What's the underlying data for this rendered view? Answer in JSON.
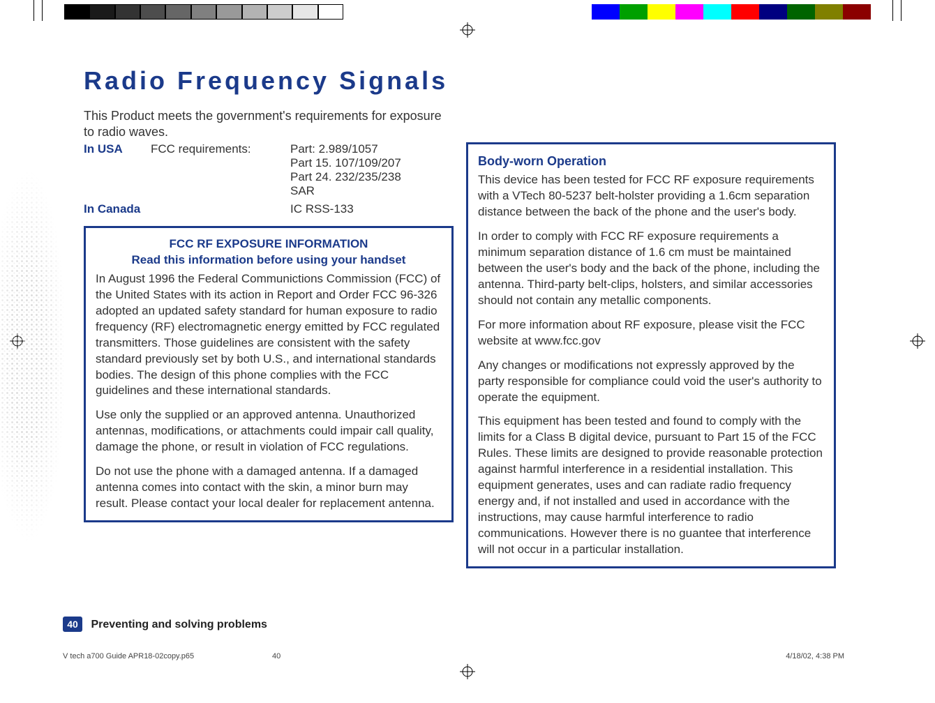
{
  "grayscale_bar": [
    "#000000",
    "#1a1a1a",
    "#333333",
    "#4d4d4d",
    "#666666",
    "#808080",
    "#999999",
    "#b3b3b3",
    "#cccccc",
    "#e6e6e6",
    "#ffffff"
  ],
  "color_bar": [
    "#0000ff",
    "#00a000",
    "#ffff00",
    "#ff00ff",
    "#00ffff",
    "#ff0000",
    "#000080",
    "#006400",
    "#808000",
    "#8b0000"
  ],
  "title": "Radio Frequency Signals",
  "intro": "This Product meets the government's requirements for exposure to radio waves.",
  "requirements": {
    "usa_label": "In USA",
    "usa_mid": "FCC requirements:",
    "usa_vals": [
      "Part: 2.989/1057",
      "Part 15. 107/109/207",
      "Part 24. 232/235/238",
      "SAR"
    ],
    "canada_label": "In Canada",
    "canada_val": "IC RSS-133"
  },
  "left_box": {
    "header": "FCC RF EXPOSURE INFORMATION",
    "subheader": "Read this information before using your handset",
    "p1": "In August 1996 the Federal Communictions Commission (FCC) of the United States with its action in Report and Order FCC 96-326 adopted an updated safety standard for human exposure to radio frequency (RF) electromagnetic energy emitted by FCC regulated transmitters. Those guidelines are consistent with the safety standard previously set by both U.S., and international standards bodies. The design of this phone complies with the FCC guidelines and these international standards.",
    "p2": "Use only the supplied or an approved antenna. Unauthorized antennas, modifications, or attachments could impair call quality, damage the phone, or result in violation of FCC regulations.",
    "p3": "Do not use the phone with a damaged antenna. If a damaged antenna comes into contact with the skin, a minor burn may result. Please contact your local dealer for replacement antenna."
  },
  "right_box": {
    "title": "Body-worn Operation",
    "p1": "This device has been tested for FCC RF exposure requirements with a VTech 80-5237 belt-holster providing a 1.6cm separation distance between the back of the phone and the user's body.",
    "p2": "In order to comply with FCC RF exposure requirements a minimum separation distance of 1.6 cm must be maintained between the user's body and the back of the phone, including the antenna.  Third-party belt-clips, holsters, and similar accessories should not contain any metallic components.",
    "p3": "For more information about RF exposure, please visit the FCC website at www.fcc.gov",
    "p4": "Any changes or modifications not expressly approved by the party responsible for compliance could void the user's authority to operate the equipment.",
    "p5": "This equipment has been tested and found to comply with the limits for a Class B digital device, pursuant to Part 15 of the FCC Rules.  These limits are designed to provide reasonable protection against harmful interference in a residential installation.  This equipment generates, uses and can radiate radio frequency energy and, if not installed and used in accordance with the instructions, may cause harmful interference to radio communications.  However there is no guantee that interference will not occur in a particular installation."
  },
  "footer": {
    "page_number": "40",
    "section": "Preventing and solving problems",
    "filename": "V tech a700 Guide APR18-02copy.p65",
    "mid_page": "40",
    "date": "4/18/02, 4:38 PM"
  },
  "colors": {
    "brand_blue": "#1b3a8a",
    "text": "#333333",
    "white": "#ffffff"
  }
}
